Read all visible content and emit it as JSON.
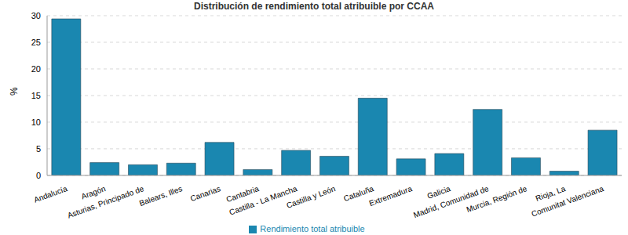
{
  "chart_data": {
    "type": "bar",
    "title": "Distribución de rendimiento total atribuible por CCAA",
    "y_label": "%",
    "categories": [
      "Andalucía",
      "Aragón",
      "Asturias, Principado de",
      "Balears, Illes",
      "Canarias",
      "Cantabria",
      "Castilla - La Mancha",
      "Castilla y León",
      "Cataluña",
      "Extremadura",
      "Galicia",
      "Madrid, Comunidad de",
      "Murcia, Región de",
      "Rioja, La",
      "Comunitat Valenciana"
    ],
    "series": [
      {
        "name": "Rendimiento total atribuible",
        "color": "#1a87b0",
        "values": [
          29.4,
          2.4,
          2.0,
          2.3,
          6.2,
          1.1,
          4.7,
          3.6,
          14.5,
          3.1,
          4.1,
          12.4,
          3.3,
          0.8,
          8.5
        ]
      }
    ],
    "ylim": [
      0,
      30
    ],
    "yticks": [
      0,
      5,
      10,
      15,
      20,
      25,
      30
    ],
    "grid": true,
    "legend": "bottom"
  }
}
